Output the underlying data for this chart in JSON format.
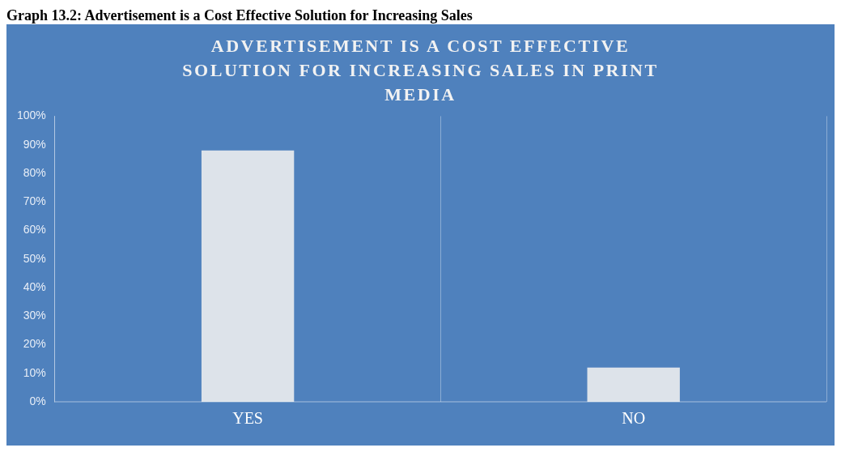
{
  "chart_data": {
    "type": "bar",
    "title": "ADVERTISEMENT IS A COST EFFECTIVE SOLUTION FOR INCREASING SALES IN PRINT MEDIA",
    "annotations": [
      "Graph 13.2: Advertisement is a Cost Effective Solution for Increasing Sales"
    ],
    "categories": [
      "YES",
      "NO"
    ],
    "values": [
      88,
      12
    ],
    "color": "#dde3ea",
    "ylim": [
      0,
      100
    ],
    "yticks": [
      {
        "value": 0,
        "label": "0%"
      },
      {
        "value": 10,
        "label": "10%"
      },
      {
        "value": 20,
        "label": "20%"
      },
      {
        "value": 30,
        "label": "30%"
      },
      {
        "value": 40,
        "label": "40%"
      },
      {
        "value": 50,
        "label": "50%"
      },
      {
        "value": 60,
        "label": "60%"
      },
      {
        "value": 70,
        "label": "70%"
      },
      {
        "value": 80,
        "label": "80%"
      },
      {
        "value": 90,
        "label": "90%"
      },
      {
        "value": 100,
        "label": "100%"
      }
    ],
    "grid": "x",
    "legend": false
  }
}
